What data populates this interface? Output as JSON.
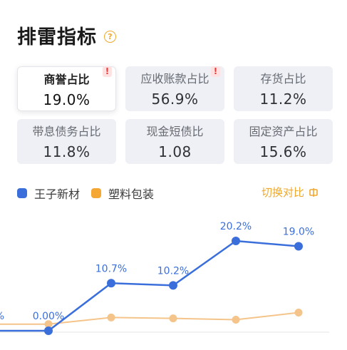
{
  "header": {
    "title": "排雷指标",
    "help_icon": "question-circle-icon"
  },
  "metrics": [
    {
      "label": "商誉占比",
      "value": "19.0%",
      "selected": true,
      "warning": true
    },
    {
      "label": "应收账款占比",
      "value": "56.9%",
      "selected": false,
      "warning": true
    },
    {
      "label": "存货占比",
      "value": "11.2%",
      "selected": false,
      "warning": false
    },
    {
      "label": "带息债务占比",
      "value": "11.8%",
      "selected": false,
      "warning": false
    },
    {
      "label": "现金短债比",
      "value": "1.08",
      "selected": false,
      "warning": false
    },
    {
      "label": "固定资产占比",
      "value": "15.6%",
      "selected": false,
      "warning": false
    }
  ],
  "legend": [
    {
      "name": "王子新材",
      "color": "#3a6fdb"
    },
    {
      "name": "塑料包装",
      "color": "#f5a733"
    }
  ],
  "switch_label": "切换对比",
  "chart_data": {
    "type": "line",
    "series": [
      {
        "name": "王子新材",
        "color": "#3a6fdb",
        "values": [
          0.0,
          0.0,
          10.7,
          10.2,
          20.2,
          19.0
        ],
        "labels": [
          "%",
          "0.00%",
          "10.7%",
          "10.2%",
          "20.2%",
          "19.0%"
        ]
      },
      {
        "name": "塑料包装",
        "color": "#f5c48a",
        "values": [
          0.2,
          0.2,
          1.7,
          1.5,
          1.2,
          2.8
        ]
      }
    ],
    "ylim": [
      0,
      25
    ],
    "grid": false
  }
}
